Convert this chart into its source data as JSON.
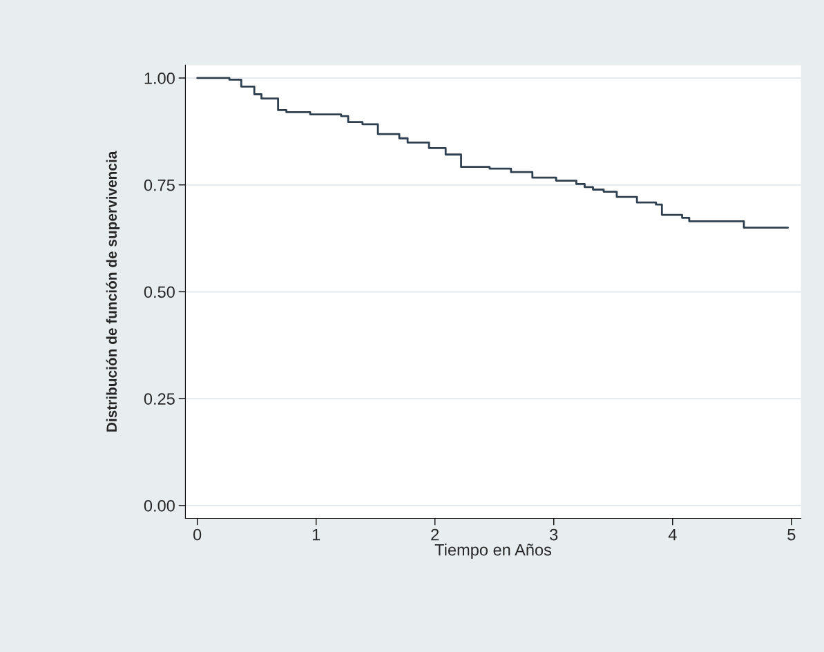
{
  "chart_data": {
    "type": "step",
    "xlabel": "Tiempo en Años",
    "ylabel": "Distribución de función de supervivencia",
    "x": [
      0,
      0.27,
      0.37,
      0.48,
      0.54,
      0.68,
      0.75,
      0.95,
      1.21,
      1.27,
      1.39,
      1.52,
      1.7,
      1.77,
      1.95,
      2.09,
      2.22,
      2.46,
      2.64,
      2.82,
      3.02,
      3.19,
      3.26,
      3.33,
      3.42,
      3.53,
      3.7,
      3.86,
      3.91,
      4.08,
      4.14,
      4.6,
      4.97
    ],
    "series": [
      {
        "color": "#2e3f4f",
        "values": [
          1.0,
          0.996,
          0.98,
          0.962,
          0.952,
          0.925,
          0.92,
          0.915,
          0.911,
          0.897,
          0.892,
          0.869,
          0.859,
          0.849,
          0.836,
          0.821,
          0.792,
          0.788,
          0.78,
          0.767,
          0.76,
          0.752,
          0.745,
          0.739,
          0.734,
          0.722,
          0.709,
          0.704,
          0.68,
          0.673,
          0.665,
          0.65,
          0.65
        ]
      }
    ],
    "xlim": [
      -0.1,
      5.08
    ],
    "ylim": [
      -0.03,
      1.03
    ],
    "xticks": [
      0,
      1,
      2,
      3,
      4,
      5
    ],
    "yticks": [
      {
        "value": 0,
        "label": "0.00"
      },
      {
        "value": 0.25,
        "label": "0.25"
      },
      {
        "value": 0.5,
        "label": "0.50"
      },
      {
        "value": 0.75,
        "label": "0.75"
      },
      {
        "value": 1,
        "label": "1.00"
      }
    ],
    "grid": "y",
    "legend": false
  }
}
